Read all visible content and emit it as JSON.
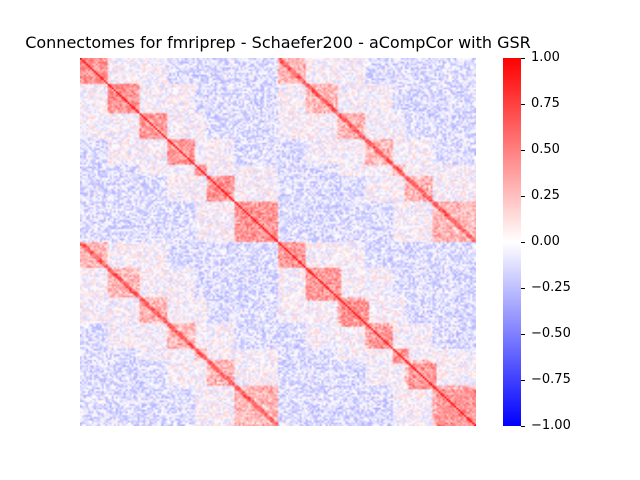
{
  "chart_data": {
    "type": "heatmap",
    "title": "Connectomes for fmriprep - Schaefer200 - aCompCor with GSR",
    "xlabel": "",
    "ylabel": "",
    "n_regions": 200,
    "colormap": "bwr",
    "vmin": -1.0,
    "vmax": 1.0,
    "colorbar_ticks": [
      "1.00",
      "0.75",
      "0.50",
      "0.25",
      "0.00",
      "−0.25",
      "−0.50",
      "−0.75",
      "−1.00"
    ],
    "colorbar_values": [
      1.0,
      0.75,
      0.5,
      0.25,
      0.0,
      -0.25,
      -0.5,
      -0.75,
      -1.0
    ],
    "network_blocks": [
      {
        "start": 0,
        "end": 14
      },
      {
        "start": 14,
        "end": 30
      },
      {
        "start": 30,
        "end": 44
      },
      {
        "start": 44,
        "end": 58
      },
      {
        "start": 58,
        "end": 64
      },
      {
        "start": 64,
        "end": 78
      },
      {
        "start": 78,
        "end": 100
      },
      {
        "start": 100,
        "end": 114
      },
      {
        "start": 114,
        "end": 132
      },
      {
        "start": 132,
        "end": 146
      },
      {
        "start": 146,
        "end": 158
      },
      {
        "start": 158,
        "end": 166
      },
      {
        "start": 166,
        "end": 180
      },
      {
        "start": 180,
        "end": 200
      }
    ]
  }
}
